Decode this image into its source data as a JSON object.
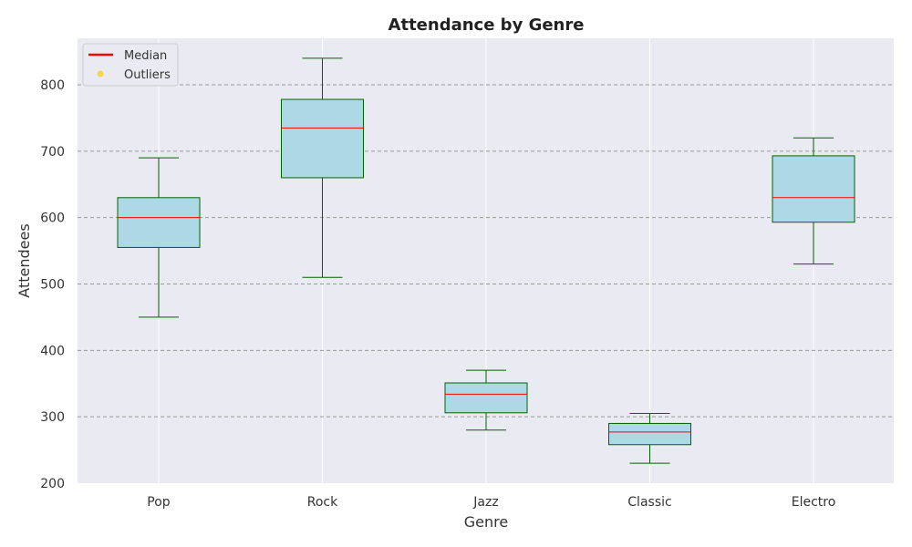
{
  "chart_data": {
    "type": "boxplot",
    "title": "Attendance by Genre",
    "xlabel": "Genre",
    "ylabel": "Attendees",
    "ylim": [
      200,
      870
    ],
    "yticks": [
      200,
      300,
      400,
      500,
      600,
      700,
      800
    ],
    "grid": true,
    "legend_position": "top-left",
    "legend": [
      {
        "label": "Median",
        "kind": "line",
        "color": "#ff0000"
      },
      {
        "label": "Outliers",
        "kind": "marker",
        "color": "#f5d742"
      }
    ],
    "colors": {
      "plot_bg": "#eaeaf2",
      "box_fill": "#add8e6",
      "box_edge": "#006400",
      "median": "#ff0000",
      "grid_h": "#999999",
      "grid_v": "#ffffff"
    },
    "categories": [
      "Pop",
      "Rock",
      "Jazz",
      "Classic",
      "Electro"
    ],
    "boxes": [
      {
        "category": "Pop",
        "min": 450,
        "q1": 555,
        "median": 600,
        "q3": 630,
        "max": 690
      },
      {
        "category": "Rock",
        "min": 510,
        "q1": 660,
        "median": 735,
        "q3": 778,
        "max": 840
      },
      {
        "category": "Jazz",
        "min": 280,
        "q1": 306,
        "median": 334,
        "q3": 351,
        "max": 370
      },
      {
        "category": "Classic",
        "min": 230,
        "q1": 258,
        "median": 277,
        "q3": 290,
        "max": 305
      },
      {
        "category": "Electro",
        "min": 530,
        "q1": 593,
        "median": 630,
        "q3": 693,
        "max": 720
      }
    ]
  }
}
